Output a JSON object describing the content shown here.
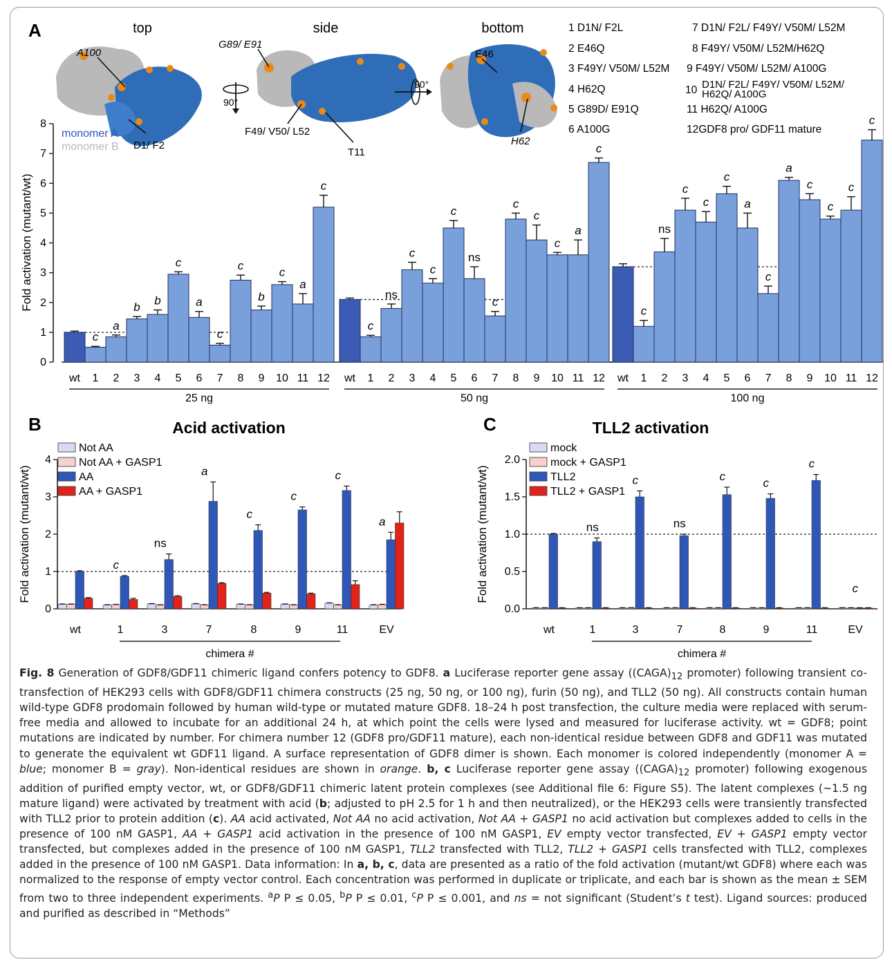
{
  "colors": {
    "wt_bar": "#3b5bb5",
    "chimera_bar": "#7aa0dc",
    "not_aa": "#d9d9f3",
    "not_aa_gasp1": "#f7d0d0",
    "aa": "#2f57b8",
    "aa_gasp1": "#e2231a",
    "monomer_a": "#2f6db8",
    "monomer_b": "#b9b9b9",
    "nonidentical": "#e88a1a"
  },
  "panel_a": {
    "label": "A",
    "views": [
      "top",
      "side",
      "bottom"
    ],
    "rotations": [
      "90°",
      "90°"
    ],
    "residue_labels": [
      "A100",
      "G89/ E91",
      "D1/ F2",
      "F49/ V50/ L52",
      "T11",
      "E46",
      "H62"
    ],
    "legend": {
      "monomer_a": "monomer A",
      "monomer_b": "monomer B"
    },
    "mutations": [
      {
        "n": "1",
        "text": "D1N/ F2L"
      },
      {
        "n": "2",
        "text": "E46Q"
      },
      {
        "n": "3",
        "text": "F49Y/ V50M/ L52M"
      },
      {
        "n": "4",
        "text": "H62Q"
      },
      {
        "n": "5",
        "text": "G89D/ E91Q"
      },
      {
        "n": "6",
        "text": "A100G"
      },
      {
        "n": "7",
        "text": "D1N/ F2L/ F49Y/ V50M/ L52M"
      },
      {
        "n": "8",
        "text": "F49Y/ V50M/ L52M/H62Q"
      },
      {
        "n": "9",
        "text": "F49Y/ V50M/ L52M/ A100G"
      },
      {
        "n": "10",
        "text": "D1N/ F2L/ F49Y/ V50M/ L52M/",
        "text2": "H62Q/ A100G"
      },
      {
        "n": "11",
        "text": "H62Q/ A100G"
      },
      {
        "n": "12",
        "text": "GDF8 pro/ GDF11 mature"
      }
    ]
  },
  "panel_b": {
    "label": "B"
  },
  "panel_c": {
    "label": "C"
  },
  "chart_data": [
    {
      "type": "bar",
      "panel": "A",
      "ylabel": "Fold activation (mutant/wt)",
      "ylim": [
        0,
        8
      ],
      "yticks": [
        0,
        1,
        2,
        3,
        4,
        5,
        6,
        7,
        8
      ],
      "categories": [
        "wt",
        "1",
        "2",
        "3",
        "4",
        "5",
        "6",
        "7",
        "8",
        "9",
        "10",
        "11",
        "12"
      ],
      "groups": [
        {
          "name": "25 ng",
          "reference": 1.0,
          "values": [
            1.0,
            0.5,
            0.85,
            1.45,
            1.6,
            2.95,
            1.5,
            0.57,
            2.75,
            1.75,
            2.6,
            1.95,
            5.2
          ],
          "errors": [
            0.04,
            0.03,
            0.06,
            0.08,
            0.15,
            0.08,
            0.2,
            0.06,
            0.17,
            0.13,
            0.1,
            0.35,
            0.4
          ],
          "sig": [
            "",
            "c",
            "a",
            "b",
            "b",
            "c",
            "a",
            "c",
            "c",
            "b",
            "c",
            "a",
            "c"
          ]
        },
        {
          "name": "50 ng",
          "reference": 2.1,
          "values": [
            2.1,
            0.85,
            1.8,
            3.1,
            2.65,
            4.5,
            2.8,
            1.55,
            4.8,
            4.1,
            3.6,
            3.6,
            6.7
          ],
          "errors": [
            0.05,
            0.05,
            0.15,
            0.25,
            0.15,
            0.25,
            0.4,
            0.15,
            0.2,
            0.5,
            0.08,
            0.5,
            0.15
          ],
          "sig": [
            "",
            "c",
            "ns",
            "c",
            "c",
            "c",
            "ns",
            "c",
            "c",
            "c",
            "c",
            "a",
            "c"
          ]
        },
        {
          "name": "100 ng",
          "reference": 3.2,
          "values": [
            3.2,
            1.2,
            3.7,
            5.1,
            4.7,
            5.65,
            4.5,
            2.3,
            6.1,
            5.45,
            4.8,
            5.1,
            7.45
          ],
          "errors": [
            0.1,
            0.2,
            0.45,
            0.4,
            0.35,
            0.25,
            0.5,
            0.25,
            0.1,
            0.2,
            0.1,
            0.45,
            0.35
          ],
          "sig": [
            "",
            "c",
            "ns",
            "c",
            "c",
            "c",
            "a",
            "c",
            "a",
            "c",
            "c",
            "c",
            "c"
          ]
        }
      ]
    },
    {
      "type": "bar",
      "panel": "B",
      "title": "Acid activation",
      "ylabel": "Fold activation (mutant/wt)",
      "xlabel": "chimera #",
      "ylim": [
        0,
        4
      ],
      "yticks": [
        0,
        1,
        2,
        3,
        4
      ],
      "reference": 1.0,
      "categories": [
        "wt",
        "1",
        "3",
        "7",
        "8",
        "9",
        "11",
        "EV"
      ],
      "series": [
        {
          "name": "Not AA",
          "values": [
            0.12,
            0.1,
            0.13,
            0.13,
            0.12,
            0.12,
            0.15,
            0.1
          ],
          "errors": [
            0.01,
            0.01,
            0.01,
            0.01,
            0.01,
            0.01,
            0.01,
            0.01
          ]
        },
        {
          "name": "Not AA + GASP1",
          "values": [
            0.12,
            0.11,
            0.1,
            0.1,
            0.1,
            0.1,
            0.1,
            0.11
          ],
          "errors": [
            0.01,
            0.01,
            0.01,
            0.01,
            0.01,
            0.01,
            0.01,
            0.01
          ]
        },
        {
          "name": "AA",
          "values": [
            1.0,
            0.87,
            1.32,
            2.88,
            2.1,
            2.65,
            3.17,
            1.85
          ],
          "errors": [
            0.02,
            0.02,
            0.15,
            0.52,
            0.15,
            0.08,
            0.12,
            0.2
          ]
        },
        {
          "name": "AA + GASP1",
          "values": [
            0.28,
            0.25,
            0.33,
            0.68,
            0.42,
            0.4,
            0.65,
            2.3
          ],
          "errors": [
            0.02,
            0.03,
            0.02,
            0.02,
            0.02,
            0.02,
            0.1,
            0.3
          ]
        }
      ],
      "sig": [
        "",
        "c",
        "ns",
        "a",
        "c",
        "c",
        "c",
        "a"
      ]
    },
    {
      "type": "bar",
      "panel": "C",
      "title": "TLL2 activation",
      "ylabel": "Fold activation (mutant/wt)",
      "xlabel": "chimera #",
      "ylim": [
        0,
        2.0
      ],
      "yticks": [
        "0.0",
        "0.5",
        "1.0",
        "1.5",
        "2.0"
      ],
      "reference": 1.0,
      "categories": [
        "wt",
        "1",
        "3",
        "7",
        "8",
        "9",
        "11",
        "EV"
      ],
      "series": [
        {
          "name": "mock",
          "values": [
            0.01,
            0.01,
            0.01,
            0.01,
            0.01,
            0.01,
            0.01,
            0.01
          ],
          "errors": [
            0.005,
            0.005,
            0.005,
            0.005,
            0.005,
            0.005,
            0.005,
            0.005
          ]
        },
        {
          "name": "mock + GASP1",
          "values": [
            0.01,
            0.01,
            0.01,
            0.01,
            0.01,
            0.01,
            0.01,
            0.01
          ],
          "errors": [
            0.005,
            0.005,
            0.005,
            0.005,
            0.005,
            0.005,
            0.005,
            0.005
          ]
        },
        {
          "name": "TLL2",
          "values": [
            1.0,
            0.9,
            1.5,
            0.98,
            1.53,
            1.48,
            1.72,
            0.01
          ],
          "errors": [
            0.01,
            0.05,
            0.08,
            0.02,
            0.1,
            0.06,
            0.08,
            0.005
          ]
        },
        {
          "name": "TLL2 + GASP1",
          "values": [
            0.01,
            0.01,
            0.01,
            0.01,
            0.01,
            0.01,
            0.01,
            0.01
          ],
          "errors": [
            0.005,
            0.005,
            0.005,
            0.005,
            0.005,
            0.005,
            0.005,
            0.005
          ]
        }
      ],
      "sig": [
        "",
        "ns",
        "c",
        "ns",
        "c",
        "c",
        "c",
        "c"
      ]
    }
  ],
  "caption": {
    "fig_label": "Fig. 8",
    "title": "Generation of GDF8/GDF11 chimeric ligand confers potency to GDF8.",
    "part_a_label": "a",
    "part_a": "Luciferase reporter gene assay ((CAGA)",
    "sub12": "12",
    "part_a_rest": "promoter) following transient co-transfection of HEK293 cells with GDF8/GDF11 chimera constructs (25 ng, 50 ng, or 100 ng), furin (50 ng), and TLL2 (50 ng). All constructs contain human wild-type GDF8 prodomain followed by human wild-type or mutated mature GDF8. 18–24 h post transfection, the culture media were replaced with serum-free media and allowed to incubate for an additional 24 h, at which point the cells were lysed and measured for luciferase activity. wt = GDF8; point mutations are indicated by number. For chimera number 12 (GDF8 pro/GDF11 mature), each non-identical residue between GDF8 and GDF11 was mutated to generate the equivalent wt GDF11 ligand. A surface representation of GDF8 dimer is shown. Each monomer is colored independently (monomer A =",
    "blue": "blue",
    "mid1": "; monomer B =",
    "gray": "gray",
    "mid2": "). Non-identical residues are shown in",
    "orange": "orange",
    "part_bc_label": "b, c",
    "part_bc": "Luciferase reporter gene assay ((CAGA)",
    "part_bc_rest": "promoter) following exogenous addition of purified empty vector, wt, or GDF8/GDF11 chimeric latent protein complexes (see Additional file 6: Figure S5). The latent complexes (~1.5 ng mature ligand) were activated by treatment with acid (",
    "b_label": "b",
    "part_bc_2": "; adjusted to pH 2.5 for 1 h and then neutralized), or the HEK293 cells were transiently transfected with TLL2 prior to protein addition (",
    "c_label": "c",
    "part_bc_3": ").",
    "aa": "AA",
    "aa_def": "acid activated,",
    "notaa": "Not AA",
    "notaa_def": "no acid activation,",
    "notaagasp": "Not AA + GASP1",
    "notaagasp_def": "no acid activation but complexes added to cells in the presence of 100 nM GASP1,",
    "aagasp": "AA + GASP1",
    "aagasp_def": "acid activation in the presence of 100 nM GASP1,",
    "ev": "EV",
    "ev_def": "empty vector transfected,",
    "evgasp": "EV + GASP1",
    "evgasp_def": "empty vector transfected, but complexes added in the presence of 100 nM GASP1,",
    "tll2": "TLL2",
    "tll2_def": "transfected with TLL2,",
    "tll2gasp": "TLL2 + GASP1",
    "tll2gasp_def": "cells transfected with TLL2, complexes added in the presence of 100 nM GASP1. Data information: In",
    "abc": "a, b, c",
    "data_info": ", data are presented as a ratio of the fold activation (mutant/wt GDF8) where each was normalized to the response of empty vector control. Each concentration was performed in duplicate or triplicate, and each bar is shown as the mean ± SEM from two to three independent experiments.",
    "pa": "P ≤ 0.05,",
    "pb": "P ≤ 0.01,",
    "pc": "P ≤ 0.001, and",
    "ns": "ns",
    "ns_def": "= not significant (Student’s",
    "t": "t",
    "ttest": "test). Ligand sources: produced and purified as described in “Methods”",
    "sup_a": "a",
    "sup_b": "b",
    "sup_c": "c"
  }
}
